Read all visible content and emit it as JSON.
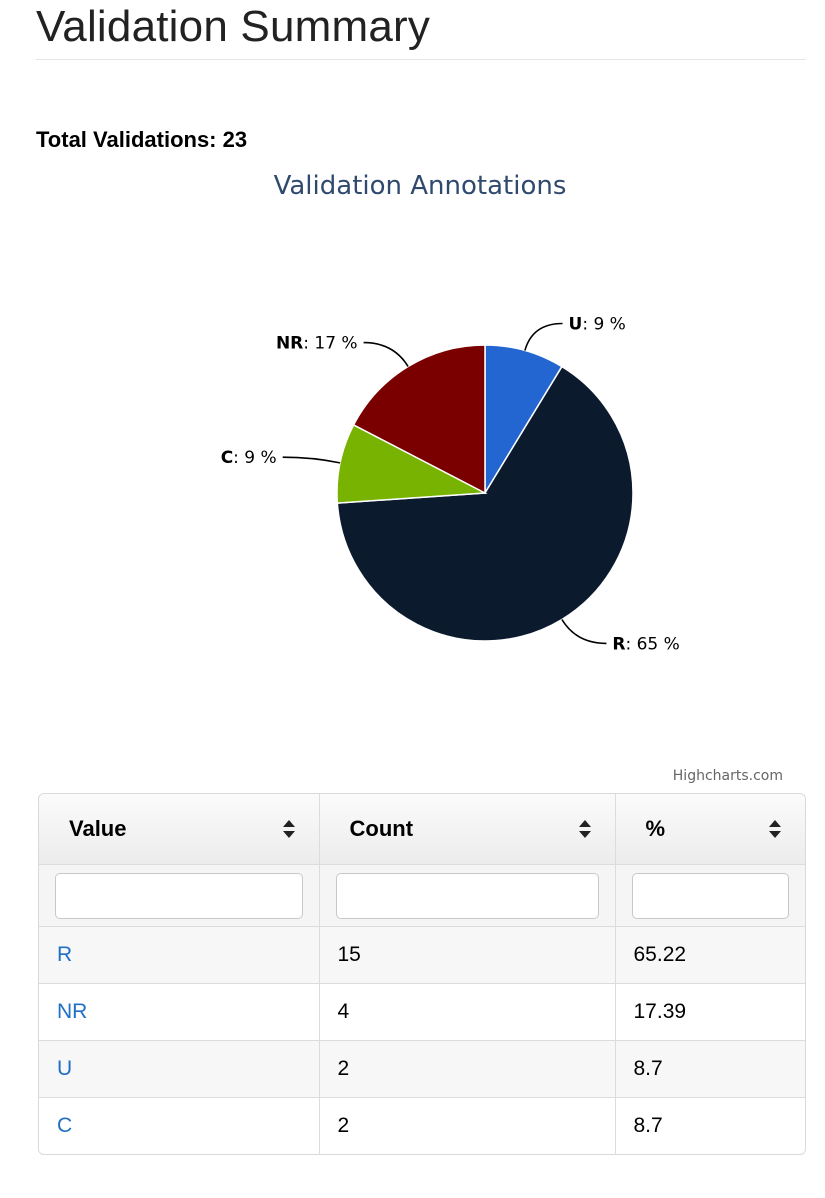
{
  "page": {
    "title": "Validation Summary",
    "total_label": "Total Validations: 23"
  },
  "chart_data": {
    "type": "pie",
    "title": "Validation Annotations",
    "slices": [
      {
        "label": "U",
        "percent_label": "9 %",
        "value": 8.7,
        "color": "#2366d1"
      },
      {
        "label": "R",
        "percent_label": "65 %",
        "value": 65.22,
        "color": "#0c1a2e"
      },
      {
        "label": "C",
        "percent_label": "9 %",
        "value": 8.7,
        "color": "#77b300"
      },
      {
        "label": "NR",
        "percent_label": "17 %",
        "value": 17.39,
        "color": "#7a0000"
      }
    ],
    "credits": "Highcharts.com"
  },
  "table": {
    "columns": [
      "Value",
      "Count",
      "%"
    ],
    "rows": [
      {
        "value": "R",
        "count": "15",
        "percent": "65.22"
      },
      {
        "value": "NR",
        "count": "4",
        "percent": "17.39"
      },
      {
        "value": "U",
        "count": "2",
        "percent": "8.7"
      },
      {
        "value": "C",
        "count": "2",
        "percent": "8.7"
      }
    ],
    "filters": [
      "",
      "",
      ""
    ]
  },
  "colors": {
    "title_blue": "#2f4a6e",
    "link_blue": "#1f6fc5"
  }
}
